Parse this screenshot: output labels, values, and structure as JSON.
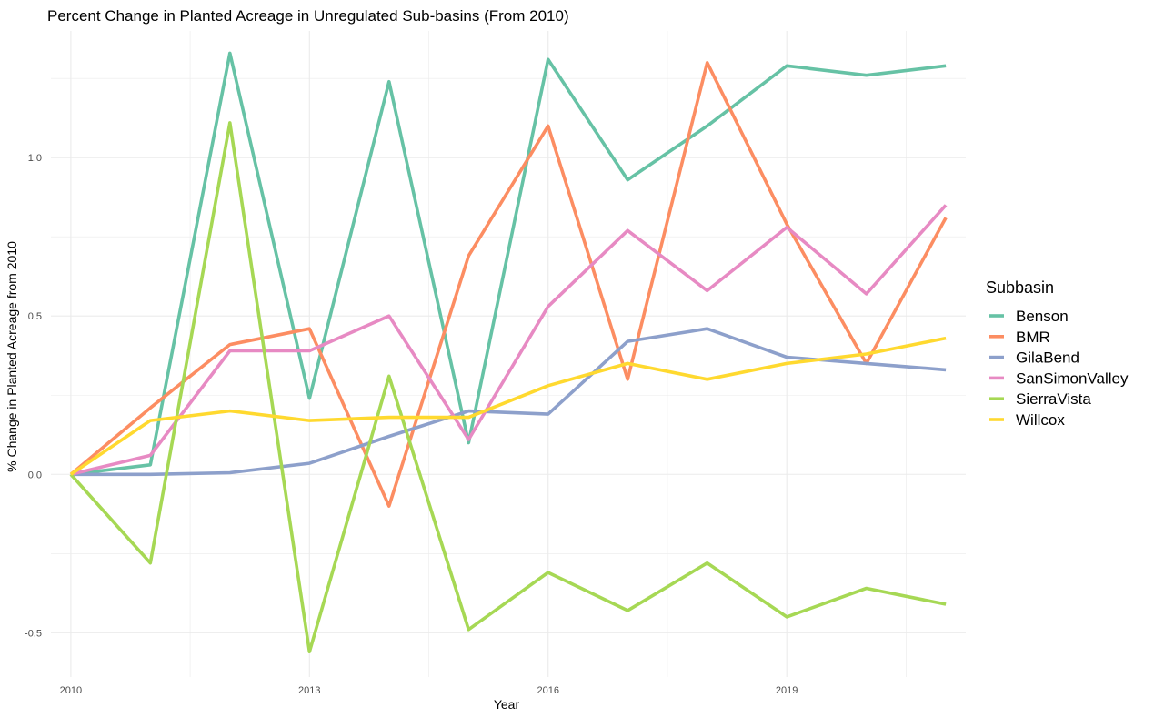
{
  "chart_data": {
    "type": "line",
    "title": "Percent Change in Planted Acreage in Unregulated Sub-basins (From 2010)",
    "xlabel": "Year",
    "ylabel": "% Change in Planted Acreage from 2010",
    "xlim": [
      2009.75,
      2021.25
    ],
    "ylim": [
      -0.64,
      1.4
    ],
    "x_ticks": [
      2010,
      2013,
      2016,
      2019
    ],
    "y_ticks": [
      -0.5,
      0.0,
      0.5,
      1.0
    ],
    "y_tick_labels": [
      "-0.5",
      "0.0",
      "0.5",
      "1.0"
    ],
    "grid": true,
    "legend_title": "Subbasin",
    "legend_position": "right",
    "x": [
      2010,
      2011,
      2012,
      2013,
      2014,
      2015,
      2016,
      2017,
      2018,
      2019,
      2020,
      2021
    ],
    "series": [
      {
        "name": "Benson",
        "color": "#66c2a5",
        "values": [
          0.0,
          0.03,
          1.33,
          0.24,
          1.24,
          0.1,
          1.31,
          0.93,
          1.1,
          1.29,
          1.26,
          1.29
        ]
      },
      {
        "name": "BMR",
        "color": "#fc8d62",
        "values": [
          0.0,
          0.21,
          0.41,
          0.46,
          -0.1,
          0.69,
          1.1,
          0.3,
          1.3,
          0.79,
          0.35,
          0.81
        ]
      },
      {
        "name": "GilaBend",
        "color": "#8da0cb",
        "values": [
          0.0,
          0.0,
          0.005,
          0.035,
          0.12,
          0.2,
          0.19,
          0.42,
          0.46,
          0.37,
          0.35,
          0.33
        ]
      },
      {
        "name": "SanSimonValley",
        "color": "#e78ac3",
        "values": [
          0.0,
          0.06,
          0.39,
          0.39,
          0.5,
          0.11,
          0.53,
          0.77,
          0.58,
          0.78,
          0.57,
          0.85
        ]
      },
      {
        "name": "SierraVista",
        "color": "#a6d854",
        "values": [
          0.0,
          -0.28,
          1.11,
          -0.56,
          0.31,
          -0.49,
          -0.31,
          -0.43,
          -0.28,
          -0.45,
          -0.36,
          -0.41
        ]
      },
      {
        "name": "Willcox",
        "color": "#ffd92f",
        "values": [
          0.0,
          0.17,
          0.2,
          0.17,
          0.18,
          0.18,
          0.28,
          0.35,
          0.3,
          0.35,
          0.38,
          0.43
        ]
      }
    ]
  }
}
